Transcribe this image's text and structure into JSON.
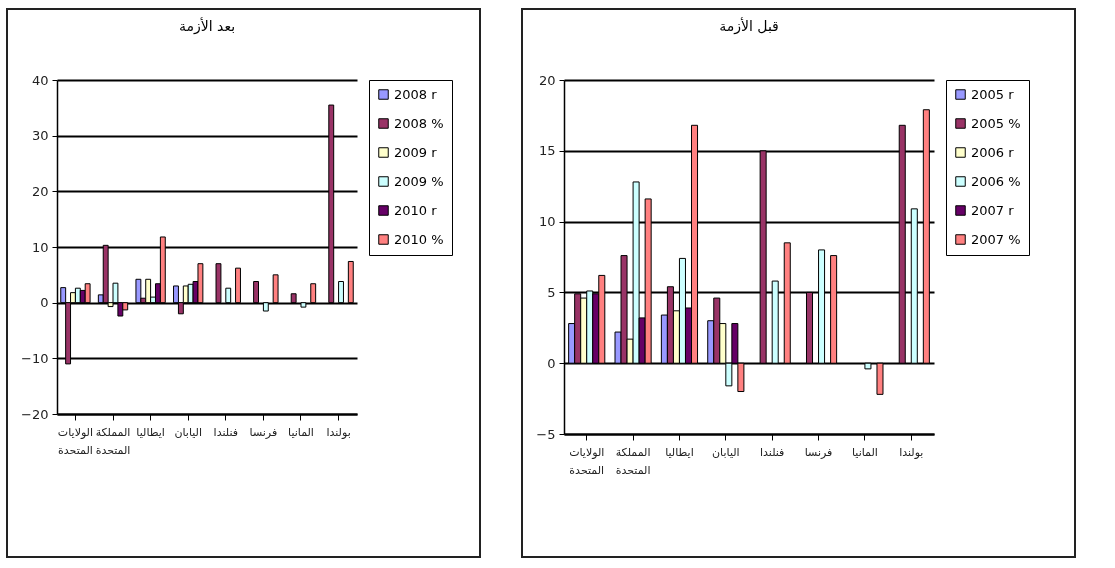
{
  "chart_data": [
    {
      "type": "bar",
      "title": "بعد الأزمة",
      "categories": [
        "الولايات المتحدة",
        "المملكة المتحدة",
        "ايطاليا",
        "اليابان",
        "فنلندا",
        "فرنسا",
        "المانيا",
        "بولندا"
      ],
      "series": [
        {
          "name": "2008 r",
          "color": "#9999ff",
          "values": [
            2.7,
            1.4,
            4.2,
            3.0,
            null,
            null,
            null,
            null
          ]
        },
        {
          "name": "2008 %",
          "color": "#993366",
          "values": [
            -11,
            10.3,
            0.8,
            -2.0,
            7.0,
            3.8,
            1.6,
            35.5
          ]
        },
        {
          "name": "2009 r",
          "color": "#ffffcc",
          "values": [
            1.8,
            -0.7,
            4.2,
            3.0,
            null,
            null,
            null,
            null
          ]
        },
        {
          "name": "2009 %",
          "color": "#ccffff",
          "values": [
            2.6,
            3.5,
            1.0,
            3.3,
            2.6,
            -1.5,
            -0.8,
            3.8
          ]
        },
        {
          "name": "2010 r",
          "color": "#660066",
          "values": [
            2.2,
            -2.4,
            3.4,
            3.8,
            null,
            null,
            null,
            null
          ]
        },
        {
          "name": "2010 %",
          "color": "#ff8080",
          "values": [
            3.4,
            -1.3,
            11.8,
            7.0,
            6.2,
            5.0,
            3.4,
            7.4
          ]
        }
      ],
      "ylim": [
        -20,
        40
      ],
      "yticks": [
        -20,
        -10,
        0,
        10,
        20,
        30,
        40
      ],
      "grid": "y",
      "legend": "right"
    },
    {
      "type": "bar",
      "title": "قبل الأزمة",
      "categories": [
        "الولايات المتحدة",
        "المملكة المتحدة",
        "ايطاليا",
        "اليابان",
        "فنلندا",
        "فرنسا",
        "المانيا",
        "بولندا"
      ],
      "series": [
        {
          "name": "2005 r",
          "color": "#9999ff",
          "values": [
            2.8,
            2.2,
            3.4,
            3.0,
            null,
            null,
            null,
            null
          ]
        },
        {
          "name": "2005 %",
          "color": "#993366",
          "values": [
            4.9,
            7.6,
            5.4,
            4.6,
            15.0,
            5.0,
            null,
            16.8
          ]
        },
        {
          "name": "2006 r",
          "color": "#ffffcc",
          "values": [
            4.6,
            1.7,
            3.7,
            2.8,
            null,
            null,
            null,
            null
          ]
        },
        {
          "name": "2006 %",
          "color": "#ccffff",
          "values": [
            5.1,
            12.8,
            7.4,
            -1.6,
            5.8,
            8.0,
            -0.4,
            10.9
          ]
        },
        {
          "name": "2007 r",
          "color": "#660066",
          "values": [
            4.9,
            3.2,
            3.9,
            2.8,
            null,
            null,
            null,
            null
          ]
        },
        {
          "name": "2007 %",
          "color": "#ff8080",
          "values": [
            6.2,
            11.6,
            16.8,
            -2.0,
            8.5,
            7.6,
            -2.2,
            17.9
          ]
        }
      ],
      "ylim": [
        -5,
        20
      ],
      "yticks": [
        -5,
        0,
        5,
        10,
        15,
        20
      ],
      "grid": "y",
      "legend": "right"
    }
  ]
}
